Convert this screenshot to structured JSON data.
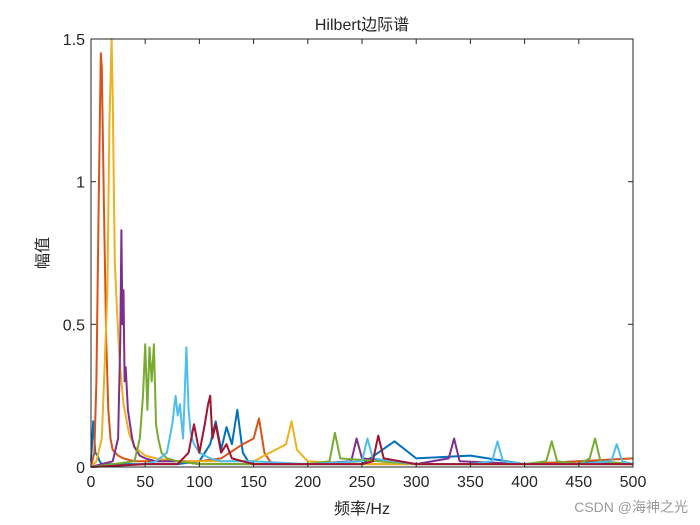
{
  "chart_data": {
    "type": "line",
    "title": "Hilbert边际谱",
    "xlabel": "频率/Hz",
    "ylabel": "幅值",
    "xlim": [
      0,
      500
    ],
    "ylim": [
      0,
      1.5
    ],
    "xticks": [
      0,
      50,
      100,
      150,
      200,
      250,
      300,
      350,
      400,
      450,
      500
    ],
    "yticks": [
      0,
      0.5,
      1,
      1.5
    ],
    "ytick_labels": [
      "0",
      "0.5",
      "1",
      "1.5"
    ],
    "grid": false,
    "series": [
      {
        "color": "#0072BD",
        "x": [
          0,
          2,
          4,
          6,
          8,
          10,
          15,
          20,
          40,
          60,
          80,
          100,
          110,
          115,
          120,
          125,
          130,
          135,
          140,
          145,
          150,
          170,
          200,
          250,
          280,
          300,
          350,
          400,
          450,
          500
        ],
        "y": [
          0.02,
          0.16,
          0.05,
          0.04,
          0.02,
          0.01,
          0.01,
          0.01,
          0.01,
          0.01,
          0.01,
          0.02,
          0.08,
          0.16,
          0.06,
          0.14,
          0.08,
          0.2,
          0.05,
          0.02,
          0.01,
          0.01,
          0.01,
          0.01,
          0.09,
          0.03,
          0.04,
          0.01,
          0.02,
          0.01
        ]
      },
      {
        "color": "#D95319",
        "x": [
          0,
          3,
          5,
          7,
          9,
          10,
          12,
          14,
          16,
          18,
          20,
          25,
          30,
          40,
          60,
          80,
          100,
          120,
          140,
          150,
          155,
          160,
          165,
          170,
          200,
          300,
          400,
          500
        ],
        "y": [
          0.0,
          0.05,
          0.3,
          0.9,
          1.45,
          1.4,
          0.9,
          0.45,
          0.2,
          0.1,
          0.06,
          0.04,
          0.03,
          0.02,
          0.02,
          0.02,
          0.02,
          0.03,
          0.08,
          0.1,
          0.17,
          0.05,
          0.02,
          0.01,
          0.01,
          0.01,
          0.01,
          0.03
        ]
      },
      {
        "color": "#EDB120",
        "x": [
          0,
          5,
          10,
          15,
          17,
          19,
          20,
          22,
          24,
          26,
          28,
          30,
          35,
          40,
          50,
          60,
          80,
          100,
          150,
          180,
          185,
          190,
          200,
          250,
          300,
          400,
          500
        ],
        "y": [
          0.0,
          0.02,
          0.1,
          0.6,
          1.2,
          1.5,
          1.3,
          0.72,
          0.55,
          0.4,
          0.3,
          0.22,
          0.12,
          0.07,
          0.04,
          0.03,
          0.02,
          0.02,
          0.02,
          0.08,
          0.16,
          0.06,
          0.02,
          0.01,
          0.01,
          0.01,
          0.01
        ]
      },
      {
        "color": "#7E2F8E",
        "x": [
          0,
          10,
          20,
          25,
          27,
          28,
          29,
          30,
          31,
          32,
          34,
          36,
          38,
          40,
          45,
          50,
          60,
          70,
          80,
          100,
          150,
          200,
          240,
          245,
          250,
          300,
          330,
          335,
          340,
          400,
          500
        ],
        "y": [
          0.0,
          0.01,
          0.02,
          0.1,
          0.45,
          0.83,
          0.5,
          0.62,
          0.3,
          0.35,
          0.2,
          0.15,
          0.1,
          0.07,
          0.04,
          0.03,
          0.02,
          0.02,
          0.02,
          0.01,
          0.01,
          0.01,
          0.02,
          0.1,
          0.03,
          0.01,
          0.03,
          0.1,
          0.02,
          0.01,
          0.01
        ]
      },
      {
        "color": "#77AC30",
        "x": [
          0,
          20,
          40,
          45,
          48,
          50,
          52,
          54,
          56,
          58,
          60,
          62,
          65,
          70,
          80,
          100,
          150,
          200,
          220,
          225,
          230,
          300,
          400,
          420,
          425,
          430,
          450,
          460,
          465,
          470,
          500
        ],
        "y": [
          0.0,
          0.01,
          0.02,
          0.1,
          0.25,
          0.43,
          0.2,
          0.42,
          0.3,
          0.43,
          0.15,
          0.1,
          0.05,
          0.03,
          0.02,
          0.01,
          0.01,
          0.01,
          0.02,
          0.12,
          0.03,
          0.01,
          0.01,
          0.02,
          0.09,
          0.02,
          0.01,
          0.03,
          0.1,
          0.02,
          0.01
        ]
      },
      {
        "color": "#4DBEEE",
        "x": [
          0,
          50,
          60,
          70,
          75,
          78,
          80,
          82,
          85,
          88,
          90,
          92,
          95,
          100,
          110,
          120,
          150,
          200,
          250,
          255,
          260,
          300,
          350,
          370,
          375,
          380,
          400,
          450,
          480,
          485,
          490,
          500
        ],
        "y": [
          0.0,
          0.01,
          0.02,
          0.05,
          0.15,
          0.25,
          0.18,
          0.22,
          0.1,
          0.42,
          0.2,
          0.12,
          0.08,
          0.05,
          0.03,
          0.02,
          0.02,
          0.01,
          0.02,
          0.1,
          0.03,
          0.01,
          0.01,
          0.02,
          0.09,
          0.02,
          0.01,
          0.01,
          0.02,
          0.08,
          0.02,
          0.01
        ]
      },
      {
        "color": "#A2142F",
        "x": [
          0,
          50,
          80,
          90,
          95,
          100,
          105,
          108,
          110,
          112,
          115,
          120,
          125,
          130,
          140,
          150,
          200,
          250,
          260,
          265,
          270,
          300,
          350,
          400,
          450,
          500
        ],
        "y": [
          0.0,
          0.01,
          0.01,
          0.05,
          0.15,
          0.05,
          0.15,
          0.22,
          0.25,
          0.1,
          0.15,
          0.05,
          0.08,
          0.03,
          0.02,
          0.01,
          0.01,
          0.01,
          0.02,
          0.11,
          0.03,
          0.01,
          0.01,
          0.01,
          0.01,
          0.01
        ]
      }
    ]
  },
  "watermark": "CSDN @海神之光"
}
